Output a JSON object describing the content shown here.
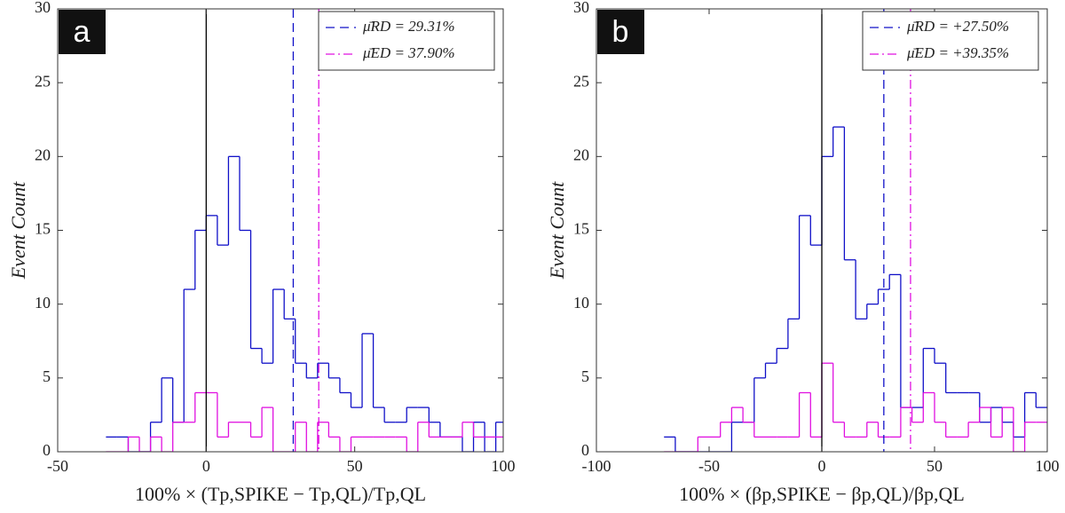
{
  "chart_data": [
    {
      "type": "step-histogram",
      "panel": "a",
      "xlabel": "100% × (Tp,SPIKE − Tp,QL)/Tp,QL",
      "ylabel": "Event Count",
      "xlim": [
        -50,
        100
      ],
      "ylim": [
        0,
        30
      ],
      "xticks": [
        -50,
        0,
        50,
        100
      ],
      "yticks": [
        0,
        5,
        10,
        15,
        20,
        25,
        30
      ],
      "bins": [
        -33.75,
        -30,
        -26.25,
        -22.5,
        -18.75,
        -15,
        -11.25,
        -7.5,
        -3.75,
        0,
        3.75,
        7.5,
        11.25,
        15,
        18.75,
        22.5,
        26.25,
        30,
        33.75,
        37.5,
        41.25,
        45,
        48.75,
        52.5,
        56.25,
        60,
        63.75,
        67.5,
        71.25,
        75,
        78.75,
        82.5,
        86.25,
        90,
        93.75,
        97.5,
        101.25
      ],
      "series": [
        {
          "color": "#1010c8",
          "values": [
            1,
            1,
            0,
            0,
            2,
            5,
            2,
            11,
            15,
            16,
            14,
            20,
            15,
            7,
            6,
            11,
            9,
            6,
            5,
            6,
            5,
            4,
            3,
            8,
            3,
            2,
            2,
            3,
            3,
            2,
            1,
            1,
            0,
            2,
            0,
            2
          ]
        },
        {
          "color": "#e010e0",
          "values": [
            0,
            0,
            1,
            0,
            1,
            0,
            2,
            2,
            4,
            4,
            1,
            2,
            2,
            1,
            3,
            0,
            0,
            2,
            0,
            2,
            1,
            0,
            1,
            1,
            1,
            1,
            1,
            0,
            2,
            1,
            1,
            1,
            2,
            1,
            1,
            1
          ]
        }
      ],
      "zero_line": 0,
      "lines": [
        {
          "name": "μ̄RD = 29.31%",
          "value": 29.31,
          "color": "#1010c8",
          "style": "dashed"
        },
        {
          "name": "μ̄ED = 37.90%",
          "value": 37.9,
          "color": "#e010e0",
          "style": "dashdot"
        }
      ]
    },
    {
      "type": "step-histogram",
      "panel": "b",
      "xlabel": "100% × (βp,SPIKE − βp,QL)/βp,QL",
      "ylabel": "Event Count",
      "xlim": [
        -100,
        100
      ],
      "ylim": [
        0,
        30
      ],
      "xticks": [
        -100,
        -50,
        0,
        50,
        100
      ],
      "yticks": [
        0,
        5,
        10,
        15,
        20,
        25,
        30
      ],
      "bins": [
        -70,
        -65,
        -60,
        -55,
        -50,
        -45,
        -40,
        -35,
        -30,
        -25,
        -20,
        -15,
        -10,
        -5,
        0,
        5,
        10,
        15,
        20,
        25,
        30,
        35,
        40,
        45,
        50,
        55,
        60,
        65,
        70,
        75,
        80,
        85,
        90,
        95,
        100
      ],
      "series": [
        {
          "color": "#1010c8",
          "values": [
            1,
            0,
            0,
            0,
            0,
            0,
            2,
            2,
            5,
            6,
            7,
            9,
            16,
            14,
            20,
            22,
            13,
            9,
            10,
            11,
            12,
            3,
            3,
            7,
            6,
            4,
            4,
            4,
            2,
            3,
            2,
            1,
            4,
            3
          ]
        },
        {
          "color": "#e010e0",
          "values": [
            0,
            0,
            0,
            1,
            1,
            2,
            3,
            2,
            1,
            1,
            1,
            1,
            4,
            1,
            6,
            2,
            1,
            1,
            2,
            1,
            1,
            3,
            2,
            4,
            2,
            1,
            1,
            2,
            3,
            1,
            3,
            0,
            2,
            2
          ]
        }
      ],
      "zero_line": 0,
      "lines": [
        {
          "name": "μ̄RD = +27.50%",
          "value": 27.5,
          "color": "#1010c8",
          "style": "dashed"
        },
        {
          "name": "μ̄ED = +39.35%",
          "value": 39.35,
          "color": "#e010e0",
          "style": "dashdot"
        }
      ]
    }
  ]
}
